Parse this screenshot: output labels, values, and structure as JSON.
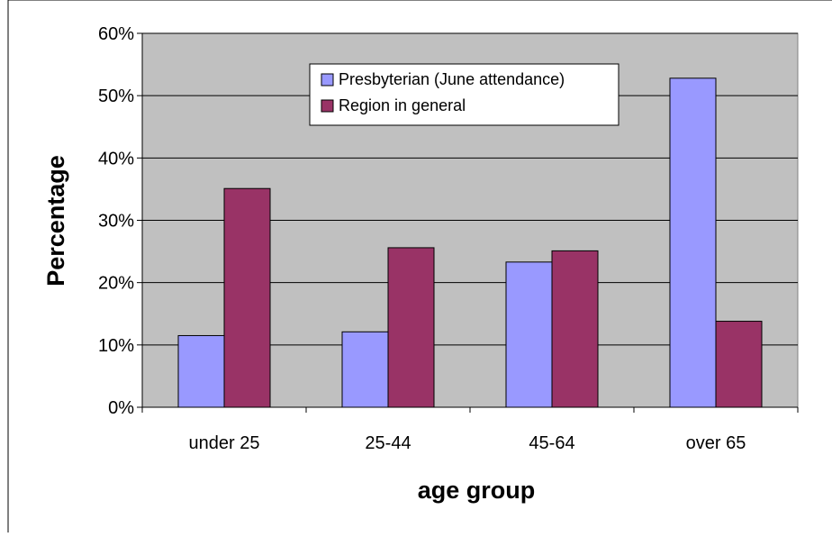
{
  "chart_data": {
    "type": "bar",
    "title": "",
    "xlabel": "age group",
    "ylabel": "Percentage",
    "categories": [
      "under 25",
      "25-44",
      "45-64",
      "over 65"
    ],
    "ylim": [
      0,
      60
    ],
    "yticks": [
      0,
      10,
      20,
      30,
      40,
      50,
      60
    ],
    "ytick_labels": [
      "0%",
      "10%",
      "20%",
      "30%",
      "40%",
      "50%",
      "60%"
    ],
    "series": [
      {
        "name": "Presbyterian (June attendance)",
        "values": [
          11.5,
          12.1,
          23.3,
          52.8
        ]
      },
      {
        "name": "Region in general",
        "values": [
          35.1,
          25.6,
          25.1,
          13.8
        ]
      }
    ],
    "legend": "top-center inside plot",
    "grid": true,
    "colors": {
      "series": [
        "#9999ff",
        "#993366"
      ],
      "plot_background": "#c0c0c0",
      "gridline": "#000000"
    }
  }
}
